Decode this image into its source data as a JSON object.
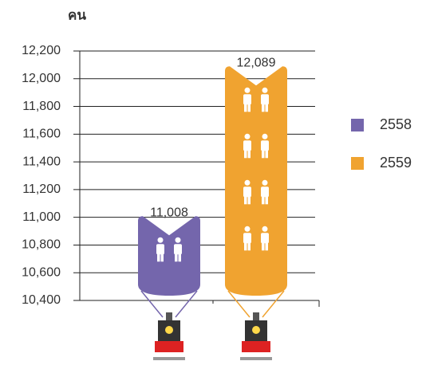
{
  "chart_data": {
    "type": "bar",
    "y_label": "คน",
    "categories": [
      null
    ],
    "series": [
      {
        "name": "2558",
        "color": "#7466ac",
        "values": [
          11008
        ],
        "value_labels": [
          "11,008"
        ]
      },
      {
        "name": "2559",
        "color": "#f0a330",
        "values": [
          12089
        ],
        "value_labels": [
          "12,089"
        ]
      }
    ],
    "ylim": [
      10400,
      12200
    ],
    "yticks": [
      {
        "value": 10400,
        "label": "10,400"
      },
      {
        "value": 10600,
        "label": "10,600"
      },
      {
        "value": 10800,
        "label": "10,800"
      },
      {
        "value": 11000,
        "label": "11,000"
      },
      {
        "value": 11200,
        "label": "11,200"
      },
      {
        "value": 11400,
        "label": "11,400"
      },
      {
        "value": 11600,
        "label": "11,600"
      },
      {
        "value": 11800,
        "label": "11,800"
      },
      {
        "value": 12000,
        "label": "12,000"
      },
      {
        "value": 12200,
        "label": "12,200"
      }
    ],
    "grid": true,
    "legend": "right"
  }
}
